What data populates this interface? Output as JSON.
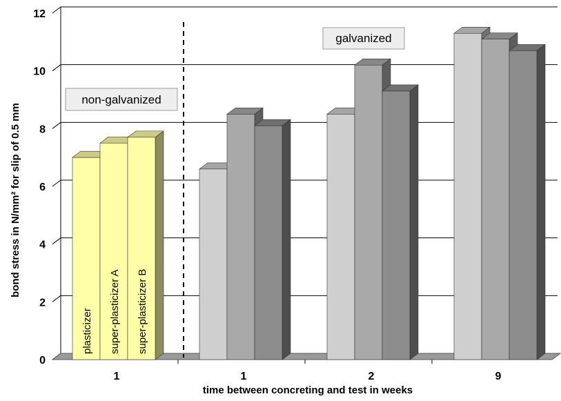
{
  "chart_data": {
    "type": "bar",
    "title": "",
    "xlabel": "time between concreting and test in weeks",
    "ylabel": "bond stress in N/mm² for slip of 0.5 mm",
    "ylim": [
      0,
      12
    ],
    "yticks": [
      0,
      2,
      4,
      6,
      8,
      10,
      12
    ],
    "grid": true,
    "style": "3d-columns",
    "groups": [
      {
        "category": "1",
        "bars": [
          {
            "value": 7.0,
            "label": "plasticizer",
            "color": "#ffffa8"
          },
          {
            "value": 7.5,
            "label": "super-plasticizer A",
            "color": "#ffffa8"
          },
          {
            "value": 7.7,
            "label": "super-plasticizer B",
            "color": "#ffffa8"
          }
        ]
      },
      {
        "category": "1",
        "bars": [
          {
            "value": 6.6,
            "label": "",
            "color": "#cfcfcf"
          },
          {
            "value": 8.5,
            "label": "",
            "color": "#a9a9a9"
          },
          {
            "value": 8.1,
            "label": "",
            "color": "#8c8c8c"
          }
        ]
      },
      {
        "category": "2",
        "bars": [
          {
            "value": 8.5,
            "label": "",
            "color": "#cfcfcf"
          },
          {
            "value": 10.2,
            "label": "",
            "color": "#a9a9a9"
          },
          {
            "value": 9.3,
            "label": "",
            "color": "#8c8c8c"
          }
        ]
      },
      {
        "category": "9",
        "bars": [
          {
            "value": 11.3,
            "label": "",
            "color": "#cfcfcf"
          },
          {
            "value": 11.1,
            "label": "",
            "color": "#a9a9a9"
          },
          {
            "value": 10.7,
            "label": "",
            "color": "#8c8c8c"
          }
        ]
      }
    ],
    "annotations": [
      {
        "text": "non-galvanized"
      },
      {
        "text": "galvanized"
      }
    ]
  }
}
